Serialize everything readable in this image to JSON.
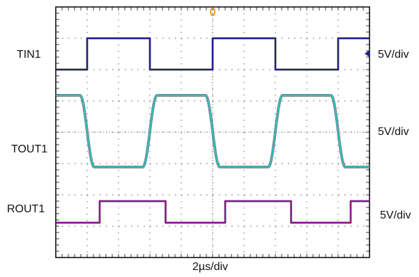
{
  "chart_data": {
    "type": "line",
    "title": "",
    "xlabel": "2µs/div",
    "channels": [
      {
        "name": "TIN1",
        "scale": "5V/div",
        "color": "#1f1f8f",
        "waveform": "square",
        "transitions_div": [
          1.0,
          3.0,
          5.0,
          7.0,
          9.0
        ],
        "initial_level": "low"
      },
      {
        "name": "TOUT1",
        "scale": "5V/div",
        "color": "#2bbfbf",
        "waveform": "slewed-square",
        "transitions_div": [
          1.0,
          3.0,
          5.0,
          7.0,
          9.0
        ],
        "initial_level": "high"
      },
      {
        "name": "ROUT1",
        "scale": "5V/div",
        "color": "#8a1a8a",
        "waveform": "square",
        "transitions_div": [
          1.4,
          3.5,
          5.4,
          7.5,
          9.4
        ],
        "initial_level": "low"
      }
    ],
    "grid": true,
    "divisions_x": 10,
    "divisions_y": 8,
    "trigger_marker_color": "#e08a00"
  }
}
